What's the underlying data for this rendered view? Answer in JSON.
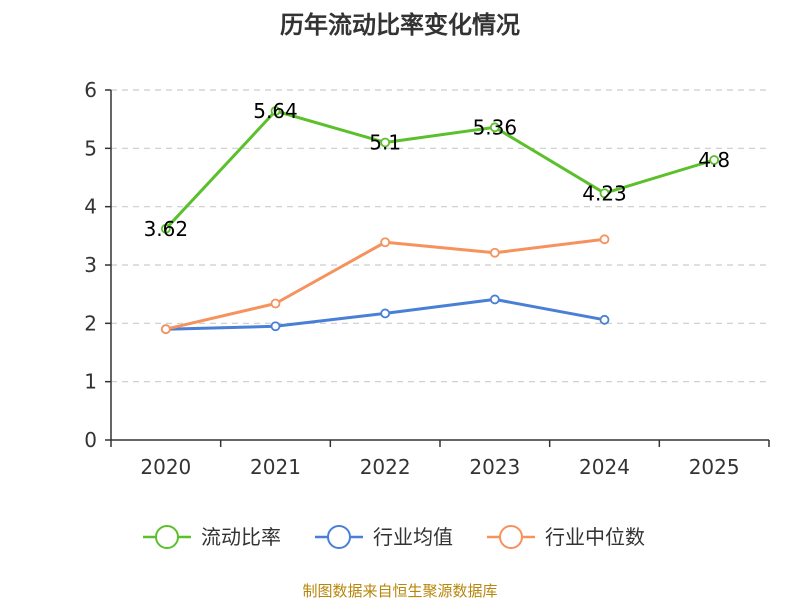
{
  "chart_data": {
    "type": "line",
    "title": "历年流动比率变化情况",
    "categories": [
      "2020",
      "2021",
      "2022",
      "2023",
      "2024",
      "2025"
    ],
    "ylim": [
      0,
      6
    ],
    "yticks": [
      0,
      1,
      2,
      3,
      4,
      5,
      6
    ],
    "grid": true,
    "legend_position": "bottom",
    "series": [
      {
        "name": "流动比率",
        "color": "#5cc02c",
        "values": [
          3.62,
          5.64,
          5.1,
          5.36,
          4.23,
          4.8
        ],
        "labels": [
          "3.62",
          "5.64",
          "5.1",
          "5.36",
          "4.23",
          "4.8"
        ]
      },
      {
        "name": "行业均值",
        "color": "#4a7fd6",
        "values": [
          1.9,
          1.95,
          2.17,
          2.41,
          2.06,
          null
        ]
      },
      {
        "name": "行业中位数",
        "color": "#f5925e",
        "values": [
          1.9,
          2.34,
          3.39,
          3.21,
          3.44,
          null
        ]
      }
    ]
  },
  "source_text": "制图数据来自恒生聚源数据库"
}
